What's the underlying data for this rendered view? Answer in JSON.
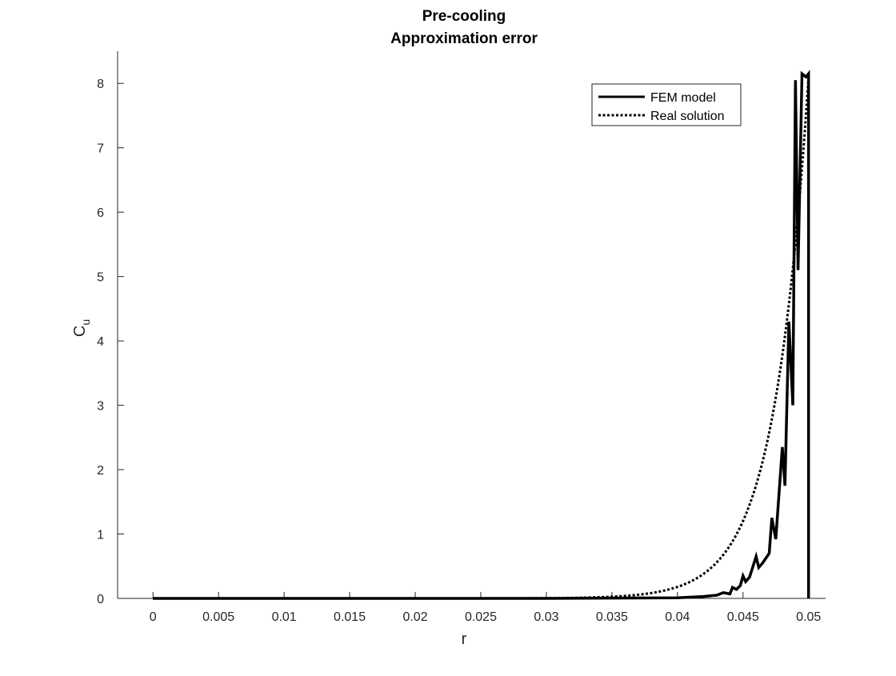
{
  "chart_data": {
    "type": "line",
    "title": [
      "Pre-cooling",
      "Approximation error"
    ],
    "xlabel": "r",
    "ylabel": "C",
    "ylabel_subscript": "u",
    "xlim": [
      -0.0027,
      0.0513
    ],
    "ylim": [
      0,
      8.5
    ],
    "xticks": [
      0,
      0.005,
      0.01,
      0.015,
      0.02,
      0.025,
      0.03,
      0.035,
      0.04,
      0.045,
      0.05
    ],
    "xtick_labels": [
      "0",
      "0.005",
      "0.01",
      "0.015",
      "0.02",
      "0.025",
      "0.03",
      "0.035",
      "0.04",
      "0.045",
      "0.05"
    ],
    "yticks": [
      0,
      1,
      2,
      3,
      4,
      5,
      6,
      7,
      8
    ],
    "ytick_labels": [
      "0",
      "1",
      "2",
      "3",
      "4",
      "5",
      "6",
      "7",
      "8"
    ],
    "grid": false,
    "legend_position": "top-right",
    "colors": {
      "lines": "#000000",
      "axes": "#262626"
    },
    "series": [
      {
        "name": "FEM model",
        "style": "solid",
        "x": [
          0,
          0.03,
          0.04,
          0.042,
          0.043,
          0.0435,
          0.044,
          0.0442,
          0.0445,
          0.0448,
          0.045,
          0.0452,
          0.0455,
          0.046,
          0.0462,
          0.0465,
          0.047,
          0.0472,
          0.0475,
          0.048,
          0.0482,
          0.0485,
          0.0488,
          0.049,
          0.0492,
          0.0495,
          0.0498,
          0.05,
          0.05
        ],
        "y": [
          0,
          0,
          0.01,
          0.03,
          0.05,
          0.09,
          0.07,
          0.17,
          0.14,
          0.2,
          0.35,
          0.26,
          0.33,
          0.65,
          0.48,
          0.55,
          0.7,
          1.25,
          0.92,
          2.35,
          1.75,
          4.3,
          3.0,
          8.05,
          5.1,
          8.15,
          8.1,
          8.15,
          0
        ]
      },
      {
        "name": "Real solution",
        "style": "dotted",
        "model": "exponential",
        "x_start": 0,
        "x_end": 0.05,
        "amplitude": 8.1,
        "decay_length": 0.00262
      }
    ]
  }
}
